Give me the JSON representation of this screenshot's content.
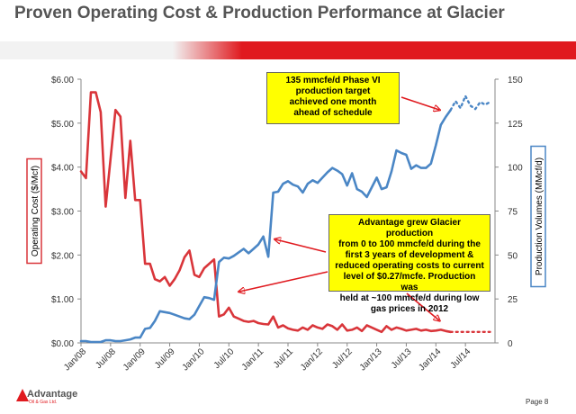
{
  "header": {
    "title": "Proven Operating Cost & Production Performance at Glacier"
  },
  "footer": {
    "logo_text": "Advantage",
    "logo_subtext": "Oil & Gas Ltd.",
    "page_label": "Page 8"
  },
  "callouts": {
    "phase_vi": "135 mmcfe/d Phase VI\nproduction target\nachieved one month\nahead of schedule",
    "growth": "Advantage grew  Glacier production\nfrom 0 to 100 mmcfe/d  during the\nfirst 3 years of development &\nreduced operating costs to current\nlevel of $0.27/mcfe.  Production was\nheld at ~100 mmcfe/d during low\ngas prices in 2012"
  },
  "colors": {
    "operating_cost": "#d9353a",
    "production": "#4a86c5",
    "band_red": "#e01a1f",
    "callout_fill": "#ffff00",
    "arrow_red": "#e01a1f"
  },
  "chart_data": {
    "type": "line",
    "x_type": "month",
    "x_range": [
      "2008-01",
      "2014-12"
    ],
    "x_tick_labels": [
      "Jan/08",
      "Jul/08",
      "Jan/09",
      "Jul/09",
      "Jan/10",
      "Jul/10",
      "Jan/11",
      "Jul/11",
      "Jan/12",
      "Jul/12",
      "Jan/13",
      "Jul/13",
      "Jan/14",
      "Jul/14"
    ],
    "x_tick_values": [
      "2008-01",
      "2008-07",
      "2009-01",
      "2009-07",
      "2010-01",
      "2010-07",
      "2011-01",
      "2011-07",
      "2012-01",
      "2012-07",
      "2013-01",
      "2013-07",
      "2014-01",
      "2014-07"
    ],
    "y_left": {
      "label": "Operating Cost ($/Mcf)",
      "range": [
        0,
        6
      ],
      "ticks": [
        0,
        1,
        2,
        3,
        4,
        5,
        6
      ],
      "tick_labels": [
        "$0.00",
        "$1.00",
        "$2.00",
        "$3.00",
        "$4.00",
        "$5.00",
        "$6.00"
      ]
    },
    "y_right": {
      "label": "Production Volumes (MMcf/d)",
      "range": [
        0,
        150
      ],
      "ticks": [
        0,
        25,
        50,
        75,
        100,
        125,
        150
      ],
      "tick_labels": [
        "0",
        "25",
        "50",
        "75",
        "100",
        "125",
        "150"
      ]
    },
    "grid": false,
    "legend": "none",
    "series": [
      {
        "axis": "left",
        "style": "solid",
        "color": "#d9353a",
        "points": [
          [
            "2008-01",
            3.9
          ],
          [
            "2008-02",
            3.75
          ],
          [
            "2008-03",
            5.7
          ],
          [
            "2008-04",
            5.7
          ],
          [
            "2008-05",
            5.25
          ],
          [
            "2008-06",
            3.1
          ],
          [
            "2008-07",
            4.2
          ],
          [
            "2008-08",
            5.3
          ],
          [
            "2008-09",
            5.15
          ],
          [
            "2008-10",
            3.3
          ],
          [
            "2008-11",
            4.6
          ],
          [
            "2008-12",
            3.25
          ],
          [
            "2009-01",
            3.25
          ],
          [
            "2009-02",
            1.8
          ],
          [
            "2009-03",
            1.8
          ],
          [
            "2009-04",
            1.45
          ],
          [
            "2009-05",
            1.4
          ],
          [
            "2009-06",
            1.5
          ],
          [
            "2009-07",
            1.3
          ],
          [
            "2009-08",
            1.45
          ],
          [
            "2009-09",
            1.65
          ],
          [
            "2009-10",
            1.95
          ],
          [
            "2009-11",
            2.1
          ],
          [
            "2009-12",
            1.55
          ],
          [
            "2010-01",
            1.5
          ],
          [
            "2010-02",
            1.7
          ],
          [
            "2010-03",
            1.8
          ],
          [
            "2010-04",
            1.9
          ],
          [
            "2010-05",
            0.6
          ],
          [
            "2010-06",
            0.65
          ],
          [
            "2010-07",
            0.8
          ],
          [
            "2010-08",
            0.6
          ],
          [
            "2010-09",
            0.55
          ],
          [
            "2010-10",
            0.5
          ],
          [
            "2010-11",
            0.48
          ],
          [
            "2010-12",
            0.5
          ],
          [
            "2011-01",
            0.45
          ],
          [
            "2011-02",
            0.43
          ],
          [
            "2011-03",
            0.42
          ],
          [
            "2011-04",
            0.6
          ],
          [
            "2011-05",
            0.35
          ],
          [
            "2011-06",
            0.4
          ],
          [
            "2011-07",
            0.33
          ],
          [
            "2011-08",
            0.3
          ],
          [
            "2011-09",
            0.28
          ],
          [
            "2011-10",
            0.35
          ],
          [
            "2011-11",
            0.3
          ],
          [
            "2011-12",
            0.4
          ],
          [
            "2012-01",
            0.35
          ],
          [
            "2012-02",
            0.32
          ],
          [
            "2012-03",
            0.42
          ],
          [
            "2012-04",
            0.38
          ],
          [
            "2012-05",
            0.3
          ],
          [
            "2012-06",
            0.42
          ],
          [
            "2012-07",
            0.28
          ],
          [
            "2012-08",
            0.3
          ],
          [
            "2012-09",
            0.35
          ],
          [
            "2012-10",
            0.27
          ],
          [
            "2012-11",
            0.4
          ],
          [
            "2012-12",
            0.35
          ],
          [
            "2013-01",
            0.3
          ],
          [
            "2013-02",
            0.25
          ],
          [
            "2013-03",
            0.38
          ],
          [
            "2013-04",
            0.3
          ],
          [
            "2013-05",
            0.35
          ],
          [
            "2013-06",
            0.32
          ],
          [
            "2013-07",
            0.28
          ],
          [
            "2013-08",
            0.3
          ],
          [
            "2013-09",
            0.32
          ],
          [
            "2013-10",
            0.28
          ],
          [
            "2013-11",
            0.3
          ],
          [
            "2013-12",
            0.27
          ],
          [
            "2014-01",
            0.28
          ],
          [
            "2014-02",
            0.3
          ],
          [
            "2014-03",
            0.27
          ],
          [
            "2014-04",
            0.25
          ]
        ]
      },
      {
        "axis": "left",
        "style": "dotted",
        "color": "#d9353a",
        "points": [
          [
            "2014-04",
            0.25
          ],
          [
            "2014-07",
            0.25
          ],
          [
            "2014-10",
            0.25
          ],
          [
            "2014-12",
            0.25
          ]
        ]
      },
      {
        "axis": "right",
        "style": "solid",
        "color": "#4a86c5",
        "points": [
          [
            "2008-01",
            1
          ],
          [
            "2008-02",
            1
          ],
          [
            "2008-03",
            0.5
          ],
          [
            "2008-04",
            0.5
          ],
          [
            "2008-05",
            0.5
          ],
          [
            "2008-06",
            1.5
          ],
          [
            "2008-07",
            1.5
          ],
          [
            "2008-08",
            1
          ],
          [
            "2008-09",
            1
          ],
          [
            "2008-10",
            1.5
          ],
          [
            "2008-11",
            2
          ],
          [
            "2008-12",
            3
          ],
          [
            "2009-01",
            3
          ],
          [
            "2009-02",
            8
          ],
          [
            "2009-03",
            8.5
          ],
          [
            "2009-04",
            12.5
          ],
          [
            "2009-05",
            18
          ],
          [
            "2009-06",
            17.5
          ],
          [
            "2009-07",
            17
          ],
          [
            "2009-08",
            16
          ],
          [
            "2009-09",
            15
          ],
          [
            "2009-10",
            14
          ],
          [
            "2009-11",
            13.5
          ],
          [
            "2009-12",
            16
          ],
          [
            "2010-01",
            21
          ],
          [
            "2010-02",
            26
          ],
          [
            "2010-03",
            25.5
          ],
          [
            "2010-04",
            24.5
          ],
          [
            "2010-05",
            46
          ],
          [
            "2010-06",
            48.5
          ],
          [
            "2010-07",
            48
          ],
          [
            "2010-08",
            49.5
          ],
          [
            "2010-09",
            51.5
          ],
          [
            "2010-10",
            53.5
          ],
          [
            "2010-11",
            51
          ],
          [
            "2010-12",
            53.5
          ],
          [
            "2011-01",
            56
          ],
          [
            "2011-02",
            60.5
          ],
          [
            "2011-03",
            49
          ],
          [
            "2011-04",
            85.5
          ],
          [
            "2011-05",
            86
          ],
          [
            "2011-06",
            90.5
          ],
          [
            "2011-07",
            92
          ],
          [
            "2011-08",
            90
          ],
          [
            "2011-09",
            89
          ],
          [
            "2011-10",
            85.5
          ],
          [
            "2011-11",
            90.5
          ],
          [
            "2011-12",
            92.5
          ],
          [
            "2012-01",
            91
          ],
          [
            "2012-02",
            94
          ],
          [
            "2012-03",
            97
          ],
          [
            "2012-04",
            99.5
          ],
          [
            "2012-05",
            98
          ],
          [
            "2012-06",
            96
          ],
          [
            "2012-07",
            89.5
          ],
          [
            "2012-08",
            96.5
          ],
          [
            "2012-09",
            87.5
          ],
          [
            "2012-10",
            86
          ],
          [
            "2012-11",
            83
          ],
          [
            "2012-12",
            88.5
          ],
          [
            "2013-01",
            94
          ],
          [
            "2013-02",
            87.5
          ],
          [
            "2013-03",
            88.5
          ],
          [
            "2013-04",
            97.5
          ],
          [
            "2013-05",
            109.5
          ],
          [
            "2013-06",
            108
          ],
          [
            "2013-07",
            107
          ],
          [
            "2013-08",
            99
          ],
          [
            "2013-09",
            101
          ],
          [
            "2013-10",
            99.5
          ],
          [
            "2013-11",
            99.5
          ],
          [
            "2013-12",
            102
          ],
          [
            "2014-01",
            112.5
          ],
          [
            "2014-02",
            124
          ],
          [
            "2014-03",
            128.5
          ],
          [
            "2014-04",
            132.5
          ]
        ]
      },
      {
        "axis": "right",
        "style": "dotted",
        "color": "#4a86c5",
        "points": [
          [
            "2014-04",
            132.5
          ],
          [
            "2014-05",
            137.5
          ],
          [
            "2014-06",
            133.5
          ],
          [
            "2014-07",
            140.5
          ],
          [
            "2014-08",
            135
          ],
          [
            "2014-09",
            133
          ],
          [
            "2014-10",
            137
          ],
          [
            "2014-11",
            135.5
          ],
          [
            "2014-12",
            137
          ]
        ]
      }
    ]
  }
}
